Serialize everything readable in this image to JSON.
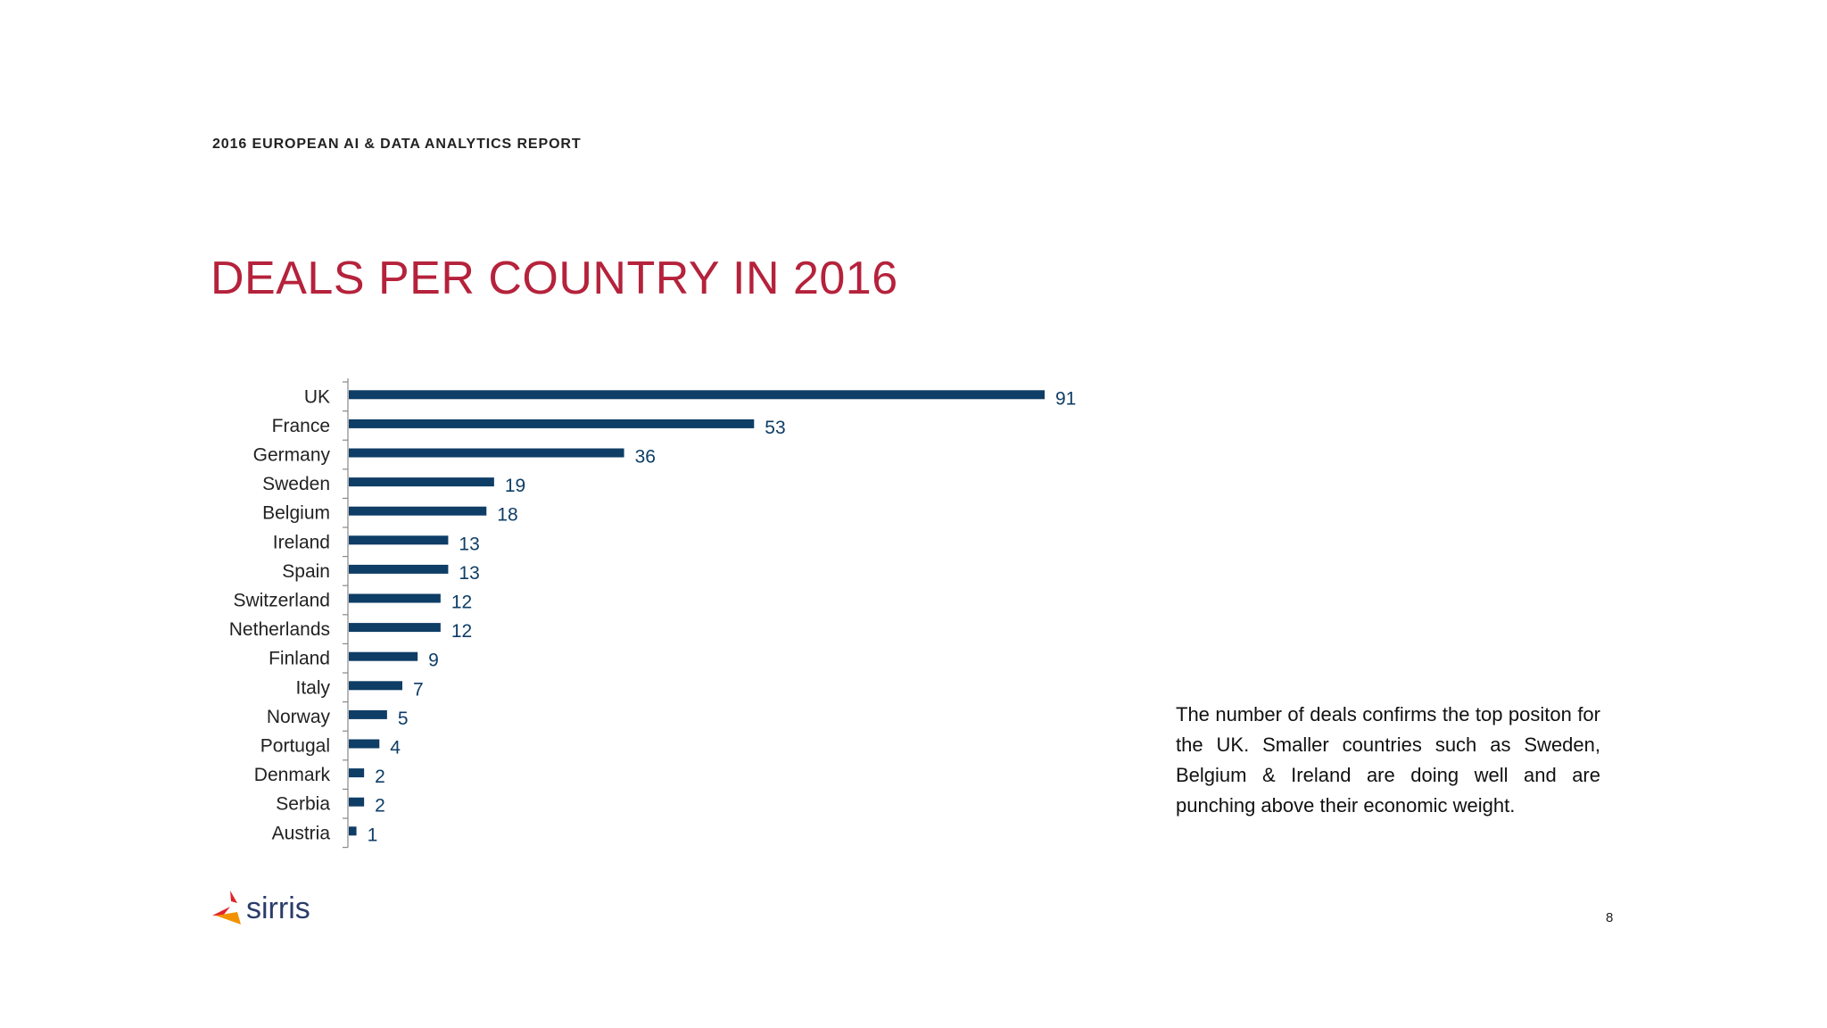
{
  "header": {
    "report_title": "2016 EUROPEAN AI & DATA ANALYTICS REPORT"
  },
  "page": {
    "title": "DEALS PER COUNTRY IN 2016",
    "number": "8"
  },
  "description": "The number of deals confirms the top positon for the UK. Smaller countries such as Sweden, Belgium & Ireland are doing well and are punching above their economic weight.",
  "logo": {
    "text": "sirris"
  },
  "colors": {
    "bar": "#0e3d66",
    "title": "#b5223b",
    "logo_red": "#e2232a",
    "logo_orange": "#f39200"
  },
  "chart_data": {
    "type": "bar",
    "orientation": "horizontal",
    "categories": [
      "UK",
      "France",
      "Germany",
      "Sweden",
      "Belgium",
      "Ireland",
      "Spain",
      "Switzerland",
      "Netherlands",
      "Finland",
      "Italy",
      "Norway",
      "Portugal",
      "Denmark",
      "Serbia",
      "Austria"
    ],
    "values": [
      91,
      53,
      36,
      19,
      18,
      13,
      13,
      12,
      12,
      9,
      7,
      5,
      4,
      2,
      2,
      1
    ],
    "xlim": [
      0,
      91
    ],
    "grid": false,
    "data_labels": true,
    "legend": "none"
  }
}
